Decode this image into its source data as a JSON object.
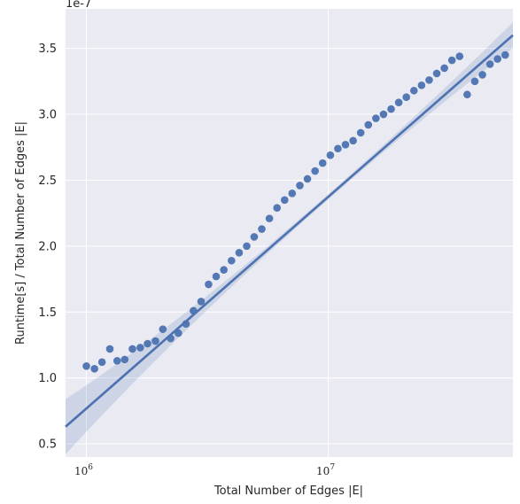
{
  "chart_data": {
    "type": "scatter",
    "title": "",
    "xlabel": "Total Number of Edges |E|",
    "ylabel": "Runtime[s] / Total Number of Edges |E|",
    "x_scale": "log",
    "x_tick_base": "10",
    "x_tick_exponents": [
      "6",
      "7"
    ],
    "y_offset_label": "1e-7",
    "y_ticks": [
      "0.5",
      "1.0",
      "1.5",
      "2.0",
      "2.5",
      "3.0",
      "3.5"
    ],
    "xlim": [
      820000,
      58000000
    ],
    "ylim": [
      0.4,
      3.8
    ],
    "grid": true,
    "colors": {
      "points": "#4c72b0",
      "fit_line": "#4c72b0",
      "background": "#eaeaf2",
      "grid": "#ffffff"
    },
    "regression": {
      "at_x_min": 0.63,
      "at_x_max": 3.6
    },
    "points": {
      "x": [
        1000000,
        1080000,
        1160000,
        1250000,
        1340000,
        1440000,
        1550000,
        1670000,
        1790000,
        1930000,
        2070000,
        2230000,
        2400000,
        2580000,
        2770000,
        2980000,
        3200000,
        3440000,
        3700000,
        3980000,
        4280000,
        4600000,
        4940000,
        5310000,
        5710000,
        6140000,
        6600000,
        7090000,
        7630000,
        8200000,
        8820000,
        9480000,
        10200000,
        10960000,
        11780000,
        12670000,
        13620000,
        14640000,
        15740000,
        16920000,
        18190000,
        19560000,
        21030000,
        22610000,
        24310000,
        26130000,
        28090000,
        30200000,
        32470000,
        34910000,
        37530000,
        40350000,
        43380000,
        46630000,
        50130000,
        53900000
      ],
      "y": [
        1.09,
        1.07,
        1.12,
        1.22,
        1.13,
        1.14,
        1.22,
        1.23,
        1.26,
        1.28,
        1.37,
        1.3,
        1.34,
        1.41,
        1.51,
        1.58,
        1.71,
        1.77,
        1.82,
        1.89,
        1.95,
        2.0,
        2.07,
        2.13,
        2.21,
        2.29,
        2.35,
        2.4,
        2.46,
        2.51,
        2.57,
        2.63,
        2.69,
        2.74,
        2.77,
        2.8,
        2.86,
        2.92,
        2.97,
        3.0,
        3.04,
        3.09,
        3.13,
        3.18,
        3.22,
        3.26,
        3.31,
        3.35,
        3.41,
        3.44,
        3.15,
        3.25,
        3.3,
        3.38,
        3.42,
        3.45
      ]
    }
  }
}
